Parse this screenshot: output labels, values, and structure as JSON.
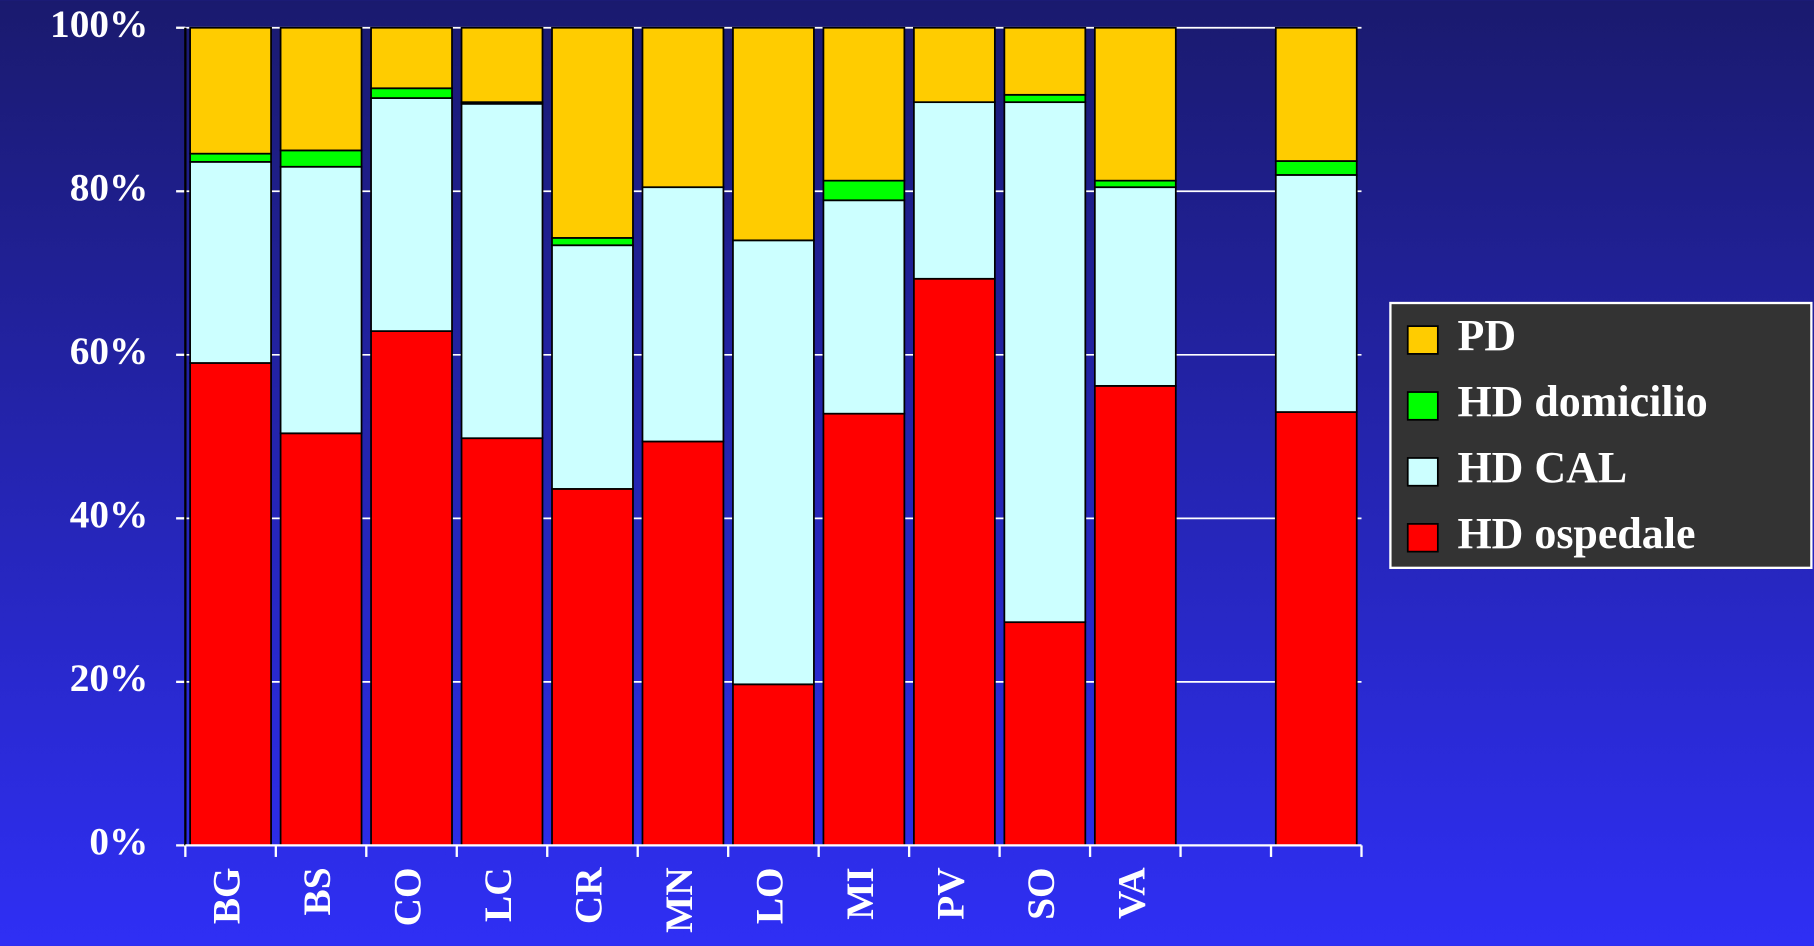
{
  "chart_data": {
    "type": "stacked_bar",
    "categories": [
      "BG",
      "BS",
      "CO",
      "LC",
      "CR",
      "MN",
      "LO",
      "MI",
      "PV",
      "SO",
      "VA",
      null,
      null
    ],
    "series": [
      {
        "name": "HD ospedale",
        "color": "#ff0000",
        "values": [
          59.0,
          50.4,
          62.9,
          49.8,
          43.6,
          49.4,
          19.7,
          52.8,
          69.3,
          27.3,
          56.2,
          null,
          53.0
        ]
      },
      {
        "name": "HD CAL",
        "color": "#ccffff",
        "values": [
          24.6,
          32.6,
          28.5,
          40.9,
          29.8,
          31.1,
          54.3,
          26.1,
          21.6,
          63.6,
          24.3,
          null,
          29.0
        ]
      },
      {
        "name": "HD domicilio",
        "color": "#00ff00",
        "values": [
          1.0,
          2.0,
          1.2,
          0.2,
          0.9,
          0,
          0,
          2.4,
          0,
          0.9,
          0.8,
          null,
          1.7
        ]
      },
      {
        "name": "PD",
        "color": "#ffcc00",
        "values": [
          15.4,
          15.0,
          7.4,
          9.1,
          25.7,
          19.5,
          26.0,
          18.7,
          9.1,
          8.2,
          18.7,
          null,
          16.3
        ]
      }
    ],
    "ylim": [
      0,
      100
    ],
    "yticks": [
      {
        "value": 0,
        "label": "0%"
      },
      {
        "value": 20,
        "label": "20%"
      },
      {
        "value": 40,
        "label": "40%"
      },
      {
        "value": 60,
        "label": "60%"
      },
      {
        "value": 80,
        "label": "80%"
      },
      {
        "value": 100,
        "label": "100%"
      }
    ],
    "grid": true,
    "legend": "right"
  }
}
